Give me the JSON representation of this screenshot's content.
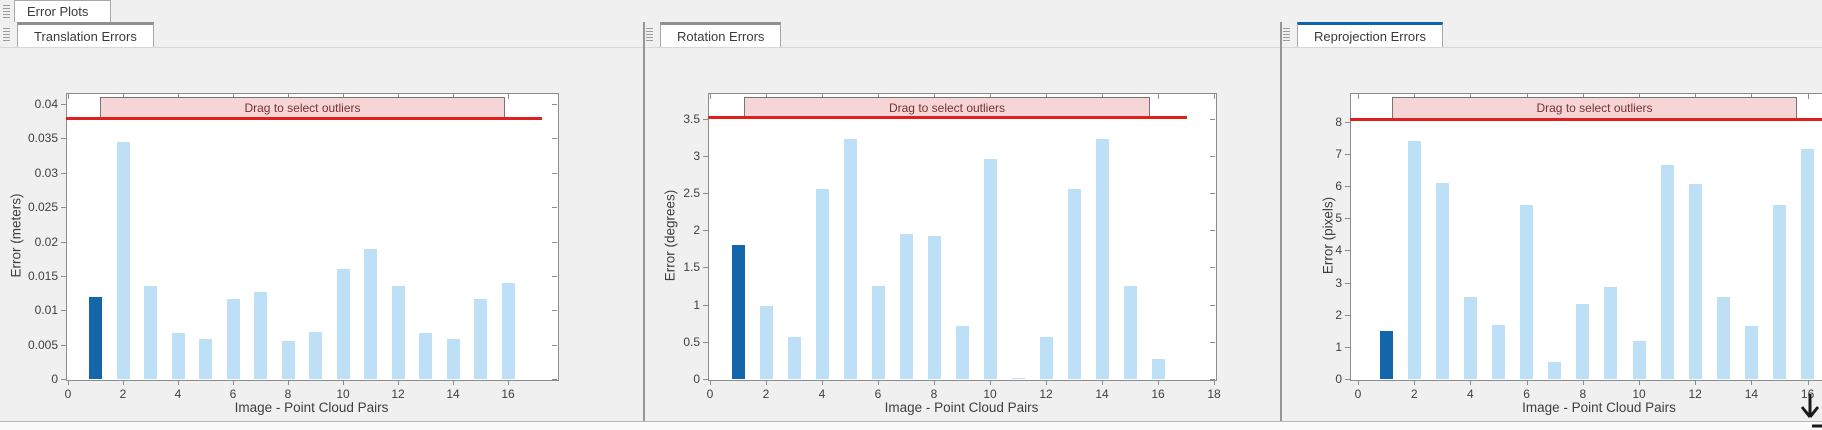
{
  "group_tab": {
    "label": "Error Plots"
  },
  "panels": [
    {
      "tab_label": "Translation Errors",
      "active": false
    },
    {
      "tab_label": "Rotation Errors",
      "active": false
    },
    {
      "tab_label": "Reprojection Errors",
      "active": true
    }
  ],
  "band_label": "Drag to select outliers",
  "chart_data": [
    {
      "type": "bar",
      "title": "Translation Errors",
      "xlabel": "Image - Point Cloud Pairs",
      "ylabel": "Error (meters)",
      "x": [
        1,
        2,
        3,
        4,
        5,
        6,
        7,
        8,
        9,
        10,
        11,
        12,
        13,
        14,
        15,
        16
      ],
      "values": [
        0.012,
        0.0345,
        0.0136,
        0.0067,
        0.0058,
        0.0117,
        0.0127,
        0.0056,
        0.0068,
        0.016,
        0.0189,
        0.0136,
        0.0067,
        0.0058,
        0.0117,
        0.014
      ],
      "selected_bar_x": 1,
      "threshold_line": 0.038,
      "band_label": "Drag to select outliers",
      "xticks": [
        0,
        2,
        4,
        6,
        8,
        10,
        12,
        14,
        16
      ],
      "ytick_values": [
        0,
        0.005,
        0.01,
        0.015,
        0.02,
        0.025,
        0.03,
        0.035,
        0.04
      ],
      "ytick_labels": [
        "0",
        "0.005",
        "0.01",
        "0.015",
        "0.02",
        "0.025",
        "0.03",
        "0.035",
        "0.04"
      ],
      "ylim": [
        0,
        0.0416
      ],
      "grid": false,
      "legend": false
    },
    {
      "type": "bar",
      "title": "Rotation Errors",
      "xlabel": "Image - Point Cloud Pairs",
      "ylabel": "Error (degrees)",
      "x": [
        1,
        2,
        3,
        4,
        5,
        6,
        7,
        8,
        9,
        10,
        11,
        12,
        13,
        14,
        15,
        16
      ],
      "values": [
        1.8,
        0.98,
        0.57,
        2.56,
        3.23,
        1.25,
        1.95,
        1.92,
        0.71,
        2.96,
        0.02,
        0.56,
        2.56,
        3.22,
        1.25,
        0.27
      ],
      "selected_bar_x": 1,
      "threshold_line": 3.52,
      "band_label": "Drag to select outliers",
      "xticks": [
        0,
        2,
        4,
        6,
        8,
        10,
        12,
        14,
        16,
        18
      ],
      "ytick_values": [
        0,
        0.5,
        1,
        1.5,
        2,
        2.5,
        3,
        3.5
      ],
      "ytick_labels": [
        "0",
        "0.5",
        "1",
        "1.5",
        "2",
        "2.5",
        "3",
        "3.5"
      ],
      "ylim": [
        0,
        3.845
      ],
      "grid": false,
      "legend": false
    },
    {
      "type": "bar",
      "title": "Reprojection Errors",
      "xlabel": "Image - Point Cloud Pairs",
      "ylabel": "Error (pixels)",
      "x": [
        1,
        2,
        3,
        4,
        5,
        6,
        7,
        8,
        9,
        10,
        11,
        12,
        13,
        14,
        15,
        16
      ],
      "values": [
        1.5,
        7.4,
        6.1,
        2.55,
        1.67,
        5.43,
        0.52,
        2.32,
        2.85,
        1.18,
        6.67,
        6.08,
        2.55,
        1.66,
        5.43,
        7.15
      ],
      "selected_bar_x": 1,
      "threshold_line": 8.1,
      "band_label": "Drag to select outliers",
      "xticks": [
        0,
        2,
        4,
        6,
        8,
        10,
        12,
        14,
        16
      ],
      "ytick_values": [
        0,
        1,
        2,
        3,
        4,
        5,
        6,
        7,
        8
      ],
      "ytick_labels": [
        "0",
        "1",
        "2",
        "3",
        "4",
        "5",
        "6",
        "7",
        "8"
      ],
      "ylim": [
        0,
        8.9
      ],
      "grid": false,
      "legend": false
    }
  ],
  "colors": {
    "bar_light": "#bde0f7",
    "bar_selected": "#1565ab",
    "threshold_red": "#e01f1f",
    "band_fill": "#f6d5d6",
    "band_border": "#757575",
    "band_text": "#7a3030",
    "active_tab_accent": "#1064a8",
    "panel_background": "#f0f0f0"
  },
  "misc": {
    "cursor_icon": "down-arrow-cursor"
  }
}
